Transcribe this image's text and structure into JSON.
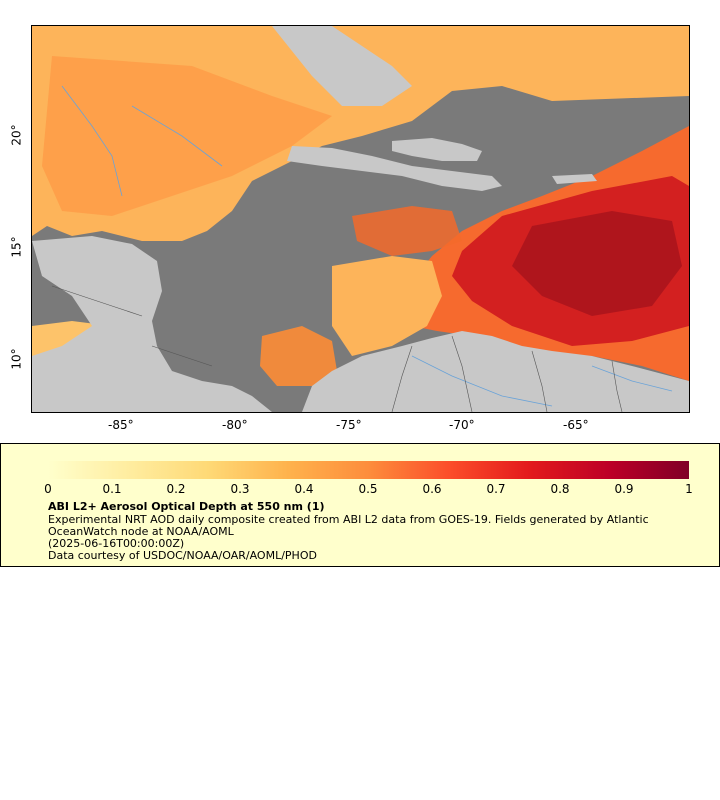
{
  "map": {
    "x_ticks": [
      "-85°",
      "-80°",
      "-75°",
      "-70°",
      "-65°"
    ],
    "y_ticks": [
      "20°",
      "15°",
      "10°"
    ],
    "colors": {
      "ocean_no_data": "#7a7a7a",
      "land": "#c8c8c8",
      "rivers": "#6aa3d8",
      "borders": "#555555"
    }
  },
  "legend": {
    "scale_min": 0,
    "scale_max": 1,
    "tick_labels": [
      "0",
      "0.1",
      "0.2",
      "0.3",
      "0.4",
      "0.5",
      "0.6",
      "0.7",
      "0.8",
      "0.9",
      "1"
    ],
    "colormap": [
      "#ffffcc",
      "#ffeda0",
      "#fed976",
      "#feb24c",
      "#fd8d3c",
      "#fc4e2a",
      "#e31a1c",
      "#bd0026",
      "#800026"
    ],
    "title": "ABI L2+ Aerosol Optical Depth at 550 nm (1)",
    "line1": "Experimental NRT AOD daily composite created from ABI L2 data from GOES-19. Fields generated by Atlantic",
    "line2": "OceanWatch node at NOAA/AOML",
    "line3": "(2025-06-16T00:00:00Z)",
    "line4": "Data courtesy of USDOC/NOAA/OAR/AOML/PHOD"
  }
}
